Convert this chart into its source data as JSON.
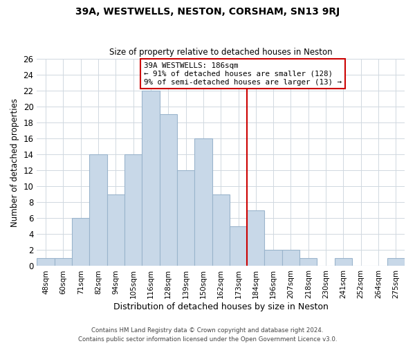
{
  "title": "39A, WESTWELLS, NESTON, CORSHAM, SN13 9RJ",
  "subtitle": "Size of property relative to detached houses in Neston",
  "xlabel": "Distribution of detached houses by size in Neston",
  "ylabel": "Number of detached properties",
  "bar_labels": [
    "48sqm",
    "60sqm",
    "71sqm",
    "82sqm",
    "94sqm",
    "105sqm",
    "116sqm",
    "128sqm",
    "139sqm",
    "150sqm",
    "162sqm",
    "173sqm",
    "184sqm",
    "196sqm",
    "207sqm",
    "218sqm",
    "230sqm",
    "241sqm",
    "252sqm",
    "264sqm",
    "275sqm"
  ],
  "bar_values": [
    1,
    1,
    6,
    14,
    9,
    14,
    22,
    19,
    12,
    16,
    9,
    5,
    7,
    2,
    2,
    1,
    0,
    1,
    0,
    0,
    1
  ],
  "bar_color": "#c8d8e8",
  "bar_edge_color": "#9ab4cc",
  "red_line_x": 11.5,
  "annotation_text": "39A WESTWELLS: 186sqm\n← 91% of detached houses are smaller (128)\n9% of semi-detached houses are larger (13) →",
  "annotation_box_color": "#ffffff",
  "annotation_border_color": "#cc0000",
  "ylim": [
    0,
    26
  ],
  "yticks": [
    0,
    2,
    4,
    6,
    8,
    10,
    12,
    14,
    16,
    18,
    20,
    22,
    24,
    26
  ],
  "footer_line1": "Contains HM Land Registry data © Crown copyright and database right 2024.",
  "footer_line2": "Contains public sector information licensed under the Open Government Licence v3.0.",
  "background_color": "#ffffff",
  "grid_color": "#d0d8e0"
}
